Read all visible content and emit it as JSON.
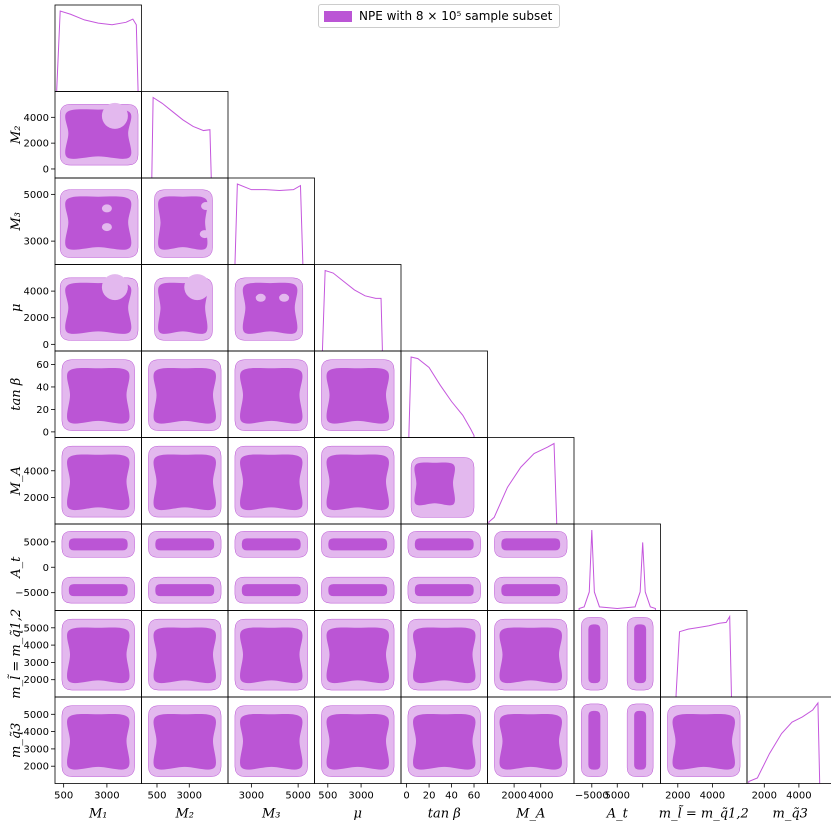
{
  "chart_data": {
    "type": "corner",
    "legend": {
      "label": "NPE with 8 × 10⁵ sample subset",
      "color": "#bb55d5"
    },
    "colors": {
      "inner": "#bb55d5",
      "outer": "#e3b8ee",
      "line": "#c557dd",
      "axes": "#000000"
    },
    "params": [
      {
        "name": "M1",
        "label": "M₁",
        "range": [
          0,
          5000
        ],
        "ticks": [
          500,
          3000
        ],
        "tick_labels": [
          "500",
          "3000"
        ]
      },
      {
        "name": "M2",
        "label": "M₂",
        "range": [
          -700,
          6000
        ],
        "ticks": [
          0,
          2000,
          4000
        ],
        "tick_labels": [
          "0",
          "2000",
          "4000"
        ],
        "xticks": [
          500,
          3000
        ],
        "xtick_labels": [
          "500",
          "3000"
        ]
      },
      {
        "name": "M3",
        "label": "M₃",
        "range": [
          2000,
          5700
        ],
        "ticks": [
          3000,
          5000
        ],
        "tick_labels": [
          "3000",
          "5000"
        ]
      },
      {
        "name": "mu",
        "label": "μ",
        "range": [
          -500,
          6000
        ],
        "ticks": [
          0,
          2000,
          4000
        ],
        "tick_labels": [
          "0",
          "2000",
          "4000"
        ],
        "xticks": [
          500,
          3000
        ],
        "xtick_labels": [
          "500",
          "3000"
        ]
      },
      {
        "name": "tanb",
        "label": "tan β",
        "range": [
          -5,
          72
        ],
        "ticks": [
          0,
          20,
          40,
          60
        ],
        "tick_labels": [
          "0",
          "20",
          "40",
          "60"
        ]
      },
      {
        "name": "MA",
        "label": "M_A",
        "range": [
          0,
          6500
        ],
        "ticks": [
          2000,
          4000
        ],
        "tick_labels": [
          "2000",
          "4000"
        ]
      },
      {
        "name": "At",
        "label": "A_t",
        "range": [
          -8500,
          8500
        ],
        "ticks": [
          -5000,
          0,
          5000
        ],
        "tick_labels": [
          "−5000",
          "0",
          "5000"
        ],
        "xtick_labels": [
          "−5000",
          "5000"
        ]
      },
      {
        "name": "msq12",
        "label": "m_l̃ = m_q̃1,2",
        "range": [
          1000,
          6000
        ],
        "ticks": [
          2000,
          3000,
          4000,
          5000
        ],
        "tick_labels": [
          "2000",
          "3000",
          "4000",
          "5000"
        ],
        "xticks": [
          2000,
          4000
        ],
        "xtick_labels": [
          "2000",
          "4000"
        ]
      },
      {
        "name": "msq3",
        "label": "m_q̃3",
        "range": [
          1000,
          6000
        ],
        "ticks": [
          2000,
          3000,
          4000,
          5000
        ],
        "tick_labels": [
          "2000",
          "3000",
          "4000",
          "5000"
        ],
        "xticks": [
          2000,
          4000
        ],
        "xtick_labels": [
          "2000",
          "4000"
        ]
      }
    ],
    "marginals": [
      {
        "param": "M1",
        "x": [
          100,
          300,
          900,
          1700,
          2500,
          3300,
          4100,
          4500,
          4700,
          4800
        ],
        "density": [
          0,
          0.97,
          0.93,
          0.86,
          0.82,
          0.8,
          0.83,
          0.87,
          0.8,
          0
        ]
      },
      {
        "param": "M2",
        "x": [
          100,
          200,
          900,
          1700,
          2500,
          3300,
          4100,
          4600,
          4700
        ],
        "density": [
          0,
          0.95,
          0.88,
          0.78,
          0.68,
          0.6,
          0.55,
          0.56,
          0
        ]
      },
      {
        "param": "M3",
        "x": [
          2300,
          2400,
          3000,
          3600,
          4200,
          4800,
          5100,
          5200
        ],
        "density": [
          0,
          0.97,
          0.9,
          0.9,
          0.89,
          0.9,
          0.95,
          0
        ]
      },
      {
        "param": "mu",
        "x": [
          100,
          300,
          900,
          1700,
          2500,
          3300,
          4100,
          4500,
          4600
        ],
        "density": [
          0,
          0.93,
          0.9,
          0.8,
          0.7,
          0.63,
          0.6,
          0.6,
          0
        ]
      },
      {
        "param": "tanb",
        "x": [
          2,
          4,
          10,
          20,
          30,
          40,
          50,
          57,
          60
        ],
        "density": [
          0,
          0.97,
          0.95,
          0.84,
          0.62,
          0.42,
          0.25,
          0.08,
          0
        ]
      },
      {
        "param": "MA",
        "x": [
          100,
          500,
          1500,
          2500,
          3500,
          4500,
          5000,
          5200
        ],
        "density": [
          0,
          0.05,
          0.38,
          0.6,
          0.75,
          0.82,
          0.86,
          0
        ]
      },
      {
        "param": "At",
        "x": [
          -7500,
          -6500,
          -5500,
          -5000,
          -4500,
          -3500,
          0,
          3500,
          4500,
          5000,
          5500,
          6500,
          7500
        ],
        "density": [
          0,
          0.02,
          0.2,
          0.95,
          0.2,
          0.02,
          0,
          0.02,
          0.2,
          0.8,
          0.2,
          0.02,
          0
        ]
      },
      {
        "param": "msq12",
        "x": [
          1900,
          2100,
          2600,
          3200,
          3800,
          4400,
          4800,
          5000,
          5100
        ],
        "density": [
          0,
          0.75,
          0.78,
          0.8,
          0.82,
          0.85,
          0.86,
          0.93,
          0
        ]
      },
      {
        "param": "msq3",
        "x": [
          1100,
          1600,
          2300,
          3000,
          3600,
          4200,
          4800,
          5100,
          5200
        ],
        "density": [
          0,
          0.04,
          0.32,
          0.55,
          0.68,
          0.74,
          0.82,
          0.9,
          0
        ]
      }
    ],
    "contours": {
      "generic": {
        "outer": [
          [
            0.08,
            0.1
          ],
          [
            0.92,
            0.92
          ]
        ],
        "inner": [
          [
            0.16,
            0.2
          ],
          [
            0.84,
            0.82
          ]
        ]
      },
      "pairs_note": "per-pair shapes described in data units",
      "pairs": [
        {
          "x": "M1",
          "y": "M2",
          "outer": [
            [
              300,
              300
            ],
            [
              4800,
              5000
            ]
          ],
          "inner": [
            [
              700,
              900
            ],
            [
              4300,
              4600
            ]
          ],
          "inner_notch": {
            "x": 3000,
            "y": 3800
          }
        },
        {
          "x": "M1",
          "y": "M3",
          "outer": [
            [
              300,
              2300
            ],
            [
              4800,
              5200
            ]
          ],
          "inner": [
            [
              700,
              2700
            ],
            [
              4300,
              4900
            ]
          ],
          "holes": [
            [
              3000,
              4400
            ],
            [
              3000,
              3600
            ]
          ]
        },
        {
          "x": "M2",
          "y": "M3",
          "outer": [
            [
              300,
              2300
            ],
            [
              4800,
              5200
            ]
          ],
          "inner": [
            [
              700,
              2700
            ],
            [
              4300,
              4900
            ]
          ],
          "holes": [
            [
              4300,
              4500
            ],
            [
              4200,
              3300
            ]
          ]
        },
        {
          "x": "M1",
          "y": "mu",
          "outer": [
            [
              300,
              300
            ],
            [
              4800,
              5000
            ]
          ],
          "inner": [
            [
              700,
              900
            ],
            [
              4300,
              4600
            ]
          ],
          "inner_notch": {
            "x": 3000,
            "y": 4000
          }
        },
        {
          "x": "M2",
          "y": "mu",
          "outer": [
            [
              300,
              300
            ],
            [
              4800,
              5000
            ]
          ],
          "inner": [
            [
              700,
              900
            ],
            [
              4300,
              4600
            ]
          ],
          "inner_notch": {
            "x": 3000,
            "y": 4000
          }
        },
        {
          "x": "M3",
          "y": "mu",
          "outer": [
            [
              2300,
              300
            ],
            [
              5200,
              5000
            ]
          ],
          "inner": [
            [
              2700,
              900
            ],
            [
              4900,
              4600
            ]
          ],
          "holes": [
            [
              3400,
              3500
            ],
            [
              4400,
              3500
            ]
          ]
        },
        {
          "x": "tanb",
          "y": "MA",
          "outer": [
            [
              4,
              500
            ],
            [
              60,
              5000
            ]
          ],
          "inner": [
            [
              8,
              1500
            ],
            [
              42,
              4600
            ]
          ]
        },
        {
          "x": "At",
          "y": "At",
          "modes": [
            -4500,
            4500
          ]
        }
      ]
    }
  }
}
